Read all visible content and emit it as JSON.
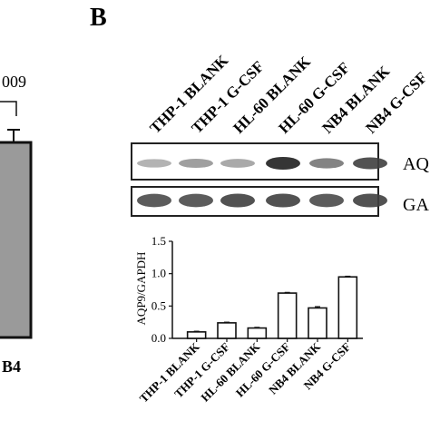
{
  "panel_a": {
    "pvalue_fragment": "009",
    "xlabel_fragment": "B4"
  },
  "panel_b": {
    "panel_label": "B",
    "lane_labels": [
      "THP-1 BLANK",
      "THP-1 G-CSF",
      "HL-60 BLANK",
      "HL-60 G-CSF",
      "NB4 BLANK",
      "NB4 G-CSF"
    ],
    "blot_rows": [
      {
        "label": "AQ",
        "intensity": [
          0.3,
          0.4,
          0.35,
          0.95,
          0.55,
          0.8
        ]
      },
      {
        "label": "GA",
        "intensity": [
          0.75,
          0.75,
          0.8,
          0.8,
          0.75,
          0.8
        ]
      }
    ]
  },
  "chart_data": {
    "type": "bar",
    "categories": [
      "THP-1 BLANK",
      "THP-1 G-CSF",
      "HL-60 BLANK",
      "HL-60 G-CSF",
      "NB4 BLANK",
      "NB4 G-CSF"
    ],
    "values": [
      0.1,
      0.24,
      0.16,
      0.7,
      0.47,
      0.95
    ],
    "errors": [
      0.01,
      0.01,
      0.01,
      0.01,
      0.02,
      0.01
    ],
    "ylabel": "AQP9/GAPDH",
    "xlabel": "",
    "ylim": [
      0,
      1.5
    ],
    "yticks": [
      "0.0",
      "0.5",
      "1.0",
      "1.5"
    ],
    "grid": false
  }
}
